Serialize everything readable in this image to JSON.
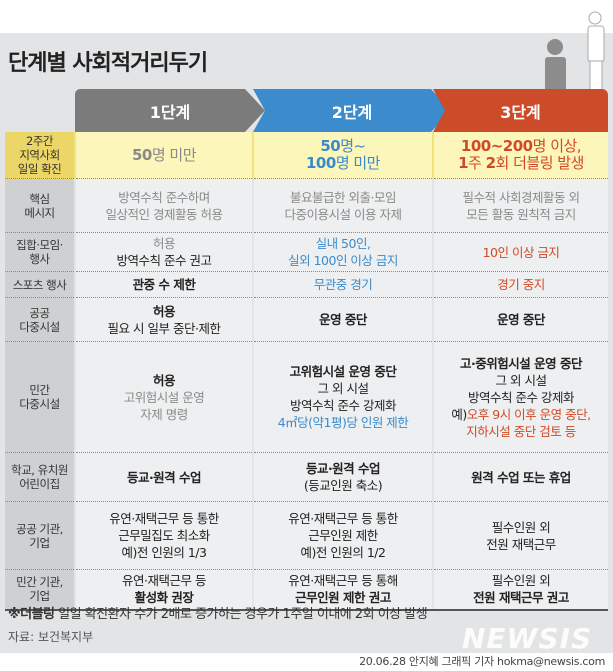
{
  "title": "단계별 사회적거리두기",
  "stages": [
    "1단계",
    "2단계",
    "3단계"
  ],
  "colors": {
    "stage1": "#7b7b7b",
    "stage2": "#3b8bcd",
    "stage3": "#cc4b28",
    "highlight": "#fdf6bb"
  },
  "rows": [
    {
      "label": [
        "2주간",
        "지역사회",
        "일일 확진"
      ],
      "cells": [
        [
          [
            {
              "t": "50",
              "s": "gray bold big"
            },
            {
              "t": "명 미만",
              "s": "gray big"
            }
          ]
        ],
        [
          [
            {
              "t": "50",
              "s": "blue bold big"
            },
            {
              "t": "명~",
              "s": "blue big"
            }
          ],
          [
            {
              "t": "100",
              "s": "blue bold big"
            },
            {
              "t": "명 미만",
              "s": "blue big"
            }
          ]
        ],
        [
          [
            {
              "t": "100~200",
              "s": "red bold big"
            },
            {
              "t": "명 이상,",
              "s": "red big"
            }
          ],
          [
            {
              "t": "1",
              "s": "red bold big"
            },
            {
              "t": "주 ",
              "s": "red big"
            },
            {
              "t": "2",
              "s": "red bold big"
            },
            {
              "t": "회 더블링 발생",
              "s": "red big"
            }
          ]
        ]
      ]
    },
    {
      "label": [
        "핵심",
        "메시지"
      ],
      "cells": [
        [
          [
            {
              "t": "방역수칙 준수하며",
              "s": "gray"
            }
          ],
          [
            {
              "t": "일상적인 경제활동 허용",
              "s": "gray"
            }
          ]
        ],
        [
          [
            {
              "t": "불요불급한 외출·모임",
              "s": "gray"
            }
          ],
          [
            {
              "t": "다중이용시설 이용 자제",
              "s": "gray"
            }
          ]
        ],
        [
          [
            {
              "t": "필수적 사회경제활동 외",
              "s": "gray"
            }
          ],
          [
            {
              "t": "모든 활동 원칙적 금지",
              "s": "gray"
            }
          ]
        ]
      ]
    },
    {
      "label": [
        "집합·모임·",
        "행사"
      ],
      "cells": [
        [
          [
            {
              "t": "허용",
              "s": "gray"
            }
          ],
          [
            {
              "t": "방역수칙 준수 권고",
              "s": ""
            }
          ]
        ],
        [
          [
            {
              "t": "실내 50인,",
              "s": "blue"
            }
          ],
          [
            {
              "t": "실외 100인 이상 금지",
              "s": "blue"
            }
          ]
        ],
        [
          [
            {
              "t": "10인 이상 금지",
              "s": "red"
            }
          ]
        ]
      ]
    },
    {
      "label": [
        "스포츠 행사"
      ],
      "cells": [
        [
          [
            {
              "t": "관중 수 제한",
              "s": "bold"
            }
          ]
        ],
        [
          [
            {
              "t": "무관중 경기",
              "s": "blue"
            }
          ]
        ],
        [
          [
            {
              "t": "경기 중지",
              "s": "red"
            }
          ]
        ]
      ]
    },
    {
      "label": [
        "공공",
        "다중시설"
      ],
      "cells": [
        [
          [
            {
              "t": "허용",
              "s": "bold"
            }
          ],
          [
            {
              "t": "필요 시 일부 중단·제한",
              "s": ""
            }
          ]
        ],
        [
          [
            {
              "t": "운영 중단",
              "s": "bold"
            }
          ]
        ],
        [
          [
            {
              "t": "운영 중단",
              "s": "bold"
            }
          ]
        ]
      ]
    },
    {
      "label": [
        "민간",
        "다중시설"
      ],
      "cells": [
        [
          [
            {
              "t": "허용",
              "s": "bold"
            }
          ],
          [
            {
              "t": "고위험시설 운영",
              "s": "gray"
            }
          ],
          [
            {
              "t": "자제 명령",
              "s": "gray"
            }
          ]
        ],
        [
          [
            {
              "t": "고위험시설 운영 중단",
              "s": "bold"
            }
          ],
          [
            {
              "t": "그 외 시설",
              "s": ""
            }
          ],
          [
            {
              "t": "방역수칙 준수 강제화",
              "s": ""
            }
          ],
          [
            {
              "t": "4㎡당(약1평)당 인원 제한",
              "s": "blue"
            }
          ]
        ],
        [
          [
            {
              "t": "고·중위험시설 운영 중단",
              "s": "bold"
            }
          ],
          [
            {
              "t": "그 외 시설",
              "s": ""
            }
          ],
          [
            {
              "t": "방역수칙 준수 강제화",
              "s": ""
            }
          ],
          [
            {
              "t": "예)",
              "s": ""
            },
            {
              "t": "오후 9시 이후 운영 중단,",
              "s": "red"
            }
          ],
          [
            {
              "t": "지하시설 중단 검토 등",
              "s": "red"
            }
          ]
        ]
      ]
    },
    {
      "label": [
        "학교, 유치원",
        "어린이집"
      ],
      "cells": [
        [
          [
            {
              "t": "등교·원격 수업",
              "s": "bold"
            }
          ]
        ],
        [
          [
            {
              "t": "등교·원격 수업",
              "s": "bold"
            }
          ],
          [
            {
              "t": "(등교인원 축소)",
              "s": ""
            }
          ]
        ],
        [
          [
            {
              "t": "원격 수업 또는 휴업",
              "s": "bold"
            }
          ]
        ]
      ]
    },
    {
      "label": [
        "공공 기관,",
        "기업"
      ],
      "cells": [
        [
          [
            {
              "t": "유연·재택근무 등 통한",
              "s": ""
            }
          ],
          [
            {
              "t": "근무밀집도 최소화",
              "s": ""
            }
          ],
          [
            {
              "t": "예)전 인원의 1/3",
              "s": ""
            }
          ]
        ],
        [
          [
            {
              "t": "유연·재택근무 등 통한",
              "s": ""
            }
          ],
          [
            {
              "t": "근무인원 제한",
              "s": ""
            }
          ],
          [
            {
              "t": "예)전 인원의 1/2",
              "s": ""
            }
          ]
        ],
        [
          [
            {
              "t": "필수인원 외",
              "s": ""
            }
          ],
          [
            {
              "t": "전원 재택근무",
              "s": ""
            }
          ]
        ]
      ]
    },
    {
      "label": [
        "민간 기관,",
        "기업"
      ],
      "cells": [
        [
          [
            {
              "t": "유연·재택근무 등",
              "s": ""
            }
          ],
          [
            {
              "t": "활성화 권장",
              "s": "bold"
            }
          ]
        ],
        [
          [
            {
              "t": "유연·재택근무 등 통해",
              "s": ""
            }
          ],
          [
            {
              "t": "근무인원 제한 권고",
              "s": "bold"
            }
          ]
        ],
        [
          [
            {
              "t": "필수인원 외",
              "s": ""
            }
          ],
          [
            {
              "t": "전원 재택근무 권고",
              "s": "bold"
            }
          ]
        ]
      ]
    }
  ],
  "footnote_prefix": "※더블링",
  "footnote": " 일일 확진환자 수가 2배로 증가하는 경우가 1주일 이내에 2회 이상 발생",
  "source": "자료: 보건복지부",
  "logo": "NEWSIS",
  "credit": "20.06.28 안지혜 그래픽 기자 hokma@newsis.com"
}
